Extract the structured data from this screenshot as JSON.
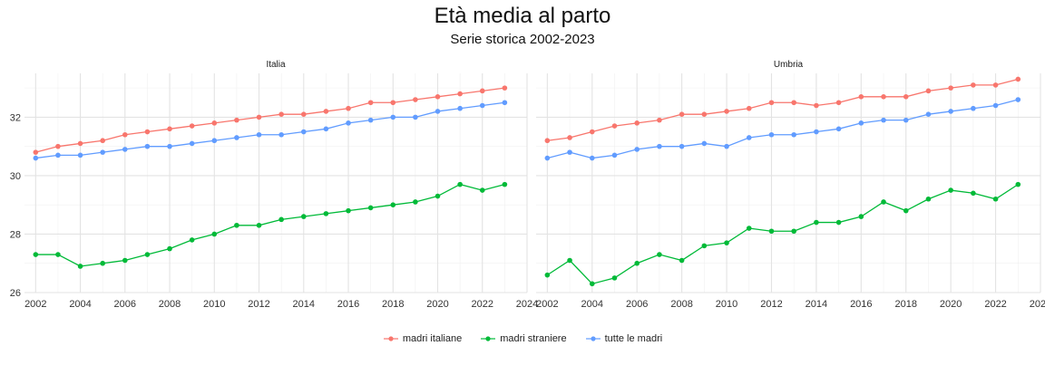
{
  "title": "Età media al parto",
  "subtitle": "Serie storica 2002-2023",
  "chart_data": {
    "type": "line",
    "facets": [
      "Italia",
      "Umbria"
    ],
    "x": [
      2002,
      2003,
      2004,
      2005,
      2006,
      2007,
      2008,
      2009,
      2010,
      2011,
      2012,
      2013,
      2014,
      2015,
      2016,
      2017,
      2018,
      2019,
      2020,
      2021,
      2022,
      2023
    ],
    "xlim": [
      2001.5,
      2024
    ],
    "xticks": [
      2002,
      2004,
      2006,
      2008,
      2010,
      2012,
      2014,
      2016,
      2018,
      2020,
      2022,
      2024
    ],
    "ylim": [
      26,
      33.5
    ],
    "yticks": [
      26,
      28,
      30,
      32
    ],
    "grid": true,
    "legend_position": "bottom",
    "series": [
      {
        "name": "madri italiane",
        "color": "#F8766D",
        "values": {
          "Italia": [
            30.8,
            31.0,
            31.1,
            31.2,
            31.4,
            31.5,
            31.6,
            31.7,
            31.8,
            31.9,
            32.0,
            32.1,
            32.1,
            32.2,
            32.3,
            32.5,
            32.5,
            32.6,
            32.7,
            32.8,
            32.9,
            33.0
          ],
          "Umbria": [
            31.2,
            31.3,
            31.5,
            31.7,
            31.8,
            31.9,
            32.1,
            32.1,
            32.2,
            32.3,
            32.5,
            32.5,
            32.4,
            32.5,
            32.7,
            32.7,
            32.7,
            32.9,
            33.0,
            33.1,
            33.1,
            33.3
          ]
        }
      },
      {
        "name": "madri straniere",
        "color": "#00BA38",
        "values": {
          "Italia": [
            27.3,
            27.3,
            26.9,
            27.0,
            27.1,
            27.3,
            27.5,
            27.8,
            28.0,
            28.3,
            28.3,
            28.5,
            28.6,
            28.7,
            28.8,
            28.9,
            29.0,
            29.1,
            29.3,
            29.7,
            29.5,
            29.7
          ],
          "Umbria": [
            26.6,
            27.1,
            26.3,
            26.5,
            27.0,
            27.3,
            27.1,
            27.6,
            27.7,
            28.2,
            28.1,
            28.1,
            28.4,
            28.4,
            28.6,
            29.1,
            28.8,
            29.2,
            29.5,
            29.4,
            29.2,
            29.7
          ]
        }
      },
      {
        "name": "tutte le madri",
        "color": "#619CFF",
        "values": {
          "Italia": [
            30.6,
            30.7,
            30.7,
            30.8,
            30.9,
            31.0,
            31.0,
            31.1,
            31.2,
            31.3,
            31.4,
            31.4,
            31.5,
            31.6,
            31.8,
            31.9,
            32.0,
            32.0,
            32.2,
            32.3,
            32.4,
            32.5
          ],
          "Umbria": [
            30.6,
            30.8,
            30.6,
            30.7,
            30.9,
            31.0,
            31.0,
            31.1,
            31.0,
            31.3,
            31.4,
            31.4,
            31.5,
            31.6,
            31.8,
            31.9,
            31.9,
            32.1,
            32.2,
            32.3,
            32.4,
            32.6
          ]
        }
      }
    ]
  }
}
